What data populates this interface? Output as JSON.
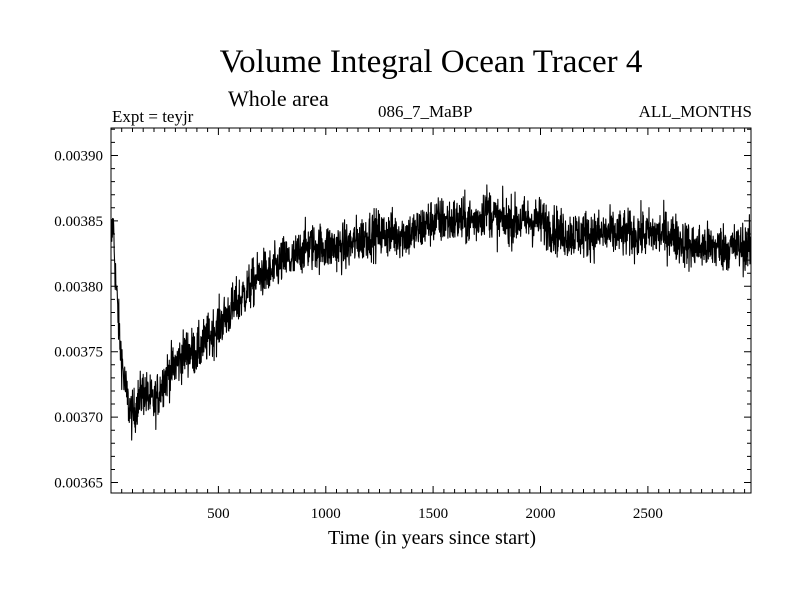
{
  "chart_data": {
    "type": "line",
    "title": "Volume Integral Ocean Tracer 4",
    "subtitle": "Whole area",
    "expt_label": "Expt = teyjr",
    "run_label": "086_7_MaBP",
    "period_label": "ALL_MONTHS",
    "xlabel": "Time (in years since start)",
    "ylabel": "",
    "xlim": [
      0,
      2980
    ],
    "ylim": [
      0.003642,
      0.003921
    ],
    "x_ticks": [
      500,
      1000,
      1500,
      2000,
      2500
    ],
    "x_tick_labels": [
      "500",
      "1000",
      "1500",
      "2000",
      "2500"
    ],
    "y_ticks": [
      0.00365,
      0.0037,
      0.00375,
      0.0038,
      0.00385,
      0.0039
    ],
    "y_tick_labels": [
      "0.00365",
      "0.00370",
      "0.00375",
      "0.00380",
      "0.00385",
      "0.00390"
    ],
    "series": [
      {
        "name": "Tracer 4 volume integral",
        "color": "#000000",
        "x": [
          0,
          10,
          20,
          40,
          60,
          80,
          100,
          120,
          150,
          200,
          250,
          300,
          350,
          400,
          450,
          500,
          550,
          600,
          650,
          700,
          750,
          800,
          850,
          900,
          1000,
          1100,
          1200,
          1300,
          1400,
          1500,
          1600,
          1700,
          1750,
          1800,
          1900,
          2000,
          2100,
          2200,
          2300,
          2400,
          2500,
          2600,
          2700,
          2800,
          2900,
          2980
        ],
        "values": [
          0.00383,
          0.00385,
          0.00381,
          0.00376,
          0.00373,
          0.00371,
          0.0037,
          0.00371,
          0.00372,
          0.00371,
          0.00373,
          0.00374,
          0.00375,
          0.00375,
          0.00376,
          0.00377,
          0.00378,
          0.00379,
          0.0038,
          0.00381,
          0.00381,
          0.00382,
          0.00382,
          0.00383,
          0.00383,
          0.00383,
          0.00384,
          0.00384,
          0.00384,
          0.00385,
          0.00385,
          0.00385,
          0.00386,
          0.00385,
          0.00385,
          0.00385,
          0.00384,
          0.00384,
          0.00384,
          0.00384,
          0.00384,
          0.00384,
          0.00383,
          0.00383,
          0.00383,
          0.00383
        ],
        "noise_amplitude": 1.8e-05
      }
    ]
  }
}
